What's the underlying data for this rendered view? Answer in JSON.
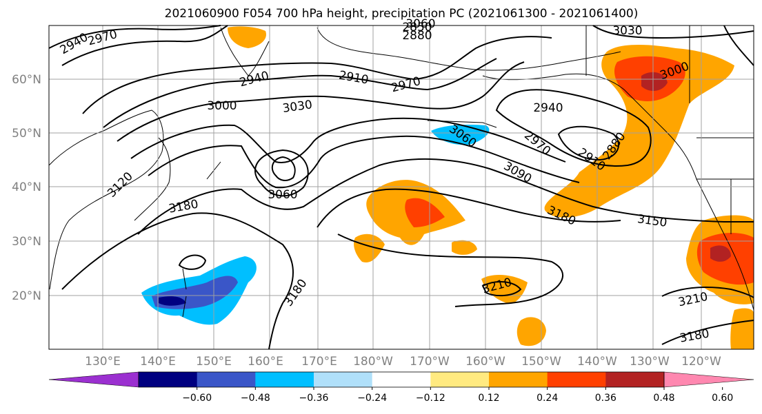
{
  "title": "2021060900 F054 700 hPa height, precipitation PC (2021061300 - 2021061400)",
  "lon_labels": [
    "130°E",
    "140°E",
    "150°E",
    "160°E",
    "170°E",
    "180°W",
    "170°W",
    "160°W",
    "150°W",
    "140°W",
    "130°W",
    "120°W"
  ],
  "lat_labels": [
    "60°N",
    "50°N",
    "40°N",
    "30°N",
    "20°N"
  ],
  "colorbar": {
    "ticks": [
      "−0.60",
      "−0.48",
      "−0.36",
      "−0.24",
      "−0.12",
      "0.12",
      "0.24",
      "0.36",
      "0.48",
      "0.60"
    ],
    "bins": [
      {
        "color": "#9b30d0"
      },
      {
        "color": "#000080"
      },
      {
        "color": "#3a56c8"
      },
      {
        "color": "#00bfff"
      },
      {
        "color": "#b0e0fa"
      },
      {
        "color": "#ffffff"
      },
      {
        "color": "#ffea80"
      },
      {
        "color": "#ffa500"
      },
      {
        "color": "#ff4000"
      },
      {
        "color": "#b22222"
      },
      {
        "color": "#ff88b0"
      }
    ]
  },
  "contour_labels": [
    "2940",
    "2970",
    "2850",
    "2880",
    "3030",
    "2940",
    "2910",
    "2970",
    "3000",
    "3030",
    "3060",
    "3090",
    "3120",
    "3060",
    "3180",
    "2940",
    "2970",
    "3060",
    "2910",
    "2880",
    "3180",
    "3150",
    "3180",
    "3210",
    "3210",
    "3180",
    "3000"
  ],
  "colors": {
    "positive_orange": "#ffa500",
    "positive_red": "#ff4000",
    "positive_dark": "#b22222",
    "negative_blue": "#00bfff",
    "negative_mid": "#3a56c8",
    "negative_navy": "#000080"
  }
}
